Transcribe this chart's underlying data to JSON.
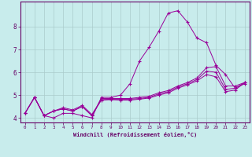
{
  "xlabel": "Windchill (Refroidissement éolien,°C)",
  "bg_color": "#c8ecec",
  "line_color": "#990099",
  "grid_color": "#aacccc",
  "axis_color": "#660066",
  "xlim": [
    -0.5,
    23.5
  ],
  "ylim": [
    3.8,
    9.1
  ],
  "xticks": [
    0,
    1,
    2,
    3,
    4,
    5,
    6,
    7,
    8,
    9,
    10,
    11,
    12,
    13,
    14,
    15,
    16,
    17,
    18,
    19,
    20,
    21,
    22,
    23
  ],
  "yticks": [
    4,
    5,
    6,
    7,
    8
  ],
  "y_main": [
    4.2,
    4.9,
    4.1,
    4.0,
    4.2,
    4.2,
    4.1,
    4.0,
    4.9,
    4.9,
    5.0,
    5.5,
    6.5,
    7.1,
    7.8,
    8.6,
    8.7,
    8.2,
    7.5,
    7.3,
    6.3,
    5.9,
    5.3,
    5.5
  ],
  "y_line2": [
    4.2,
    4.9,
    4.1,
    4.3,
    4.4,
    4.3,
    4.5,
    4.1,
    4.85,
    4.85,
    4.85,
    4.85,
    4.9,
    4.95,
    5.1,
    5.2,
    5.4,
    5.55,
    5.75,
    6.2,
    6.25,
    5.4,
    5.4,
    5.55
  ],
  "y_line3": [
    4.2,
    4.9,
    4.1,
    4.3,
    4.4,
    4.3,
    4.5,
    4.1,
    4.8,
    4.82,
    4.82,
    4.82,
    4.85,
    4.9,
    5.05,
    5.15,
    5.35,
    5.5,
    5.68,
    6.05,
    6.0,
    5.25,
    5.3,
    5.55
  ],
  "y_line4": [
    4.2,
    4.9,
    4.1,
    4.3,
    4.45,
    4.35,
    4.55,
    4.15,
    4.78,
    4.8,
    4.78,
    4.78,
    4.82,
    4.87,
    5.0,
    5.1,
    5.3,
    5.45,
    5.62,
    5.9,
    5.8,
    5.15,
    5.22,
    5.55
  ]
}
